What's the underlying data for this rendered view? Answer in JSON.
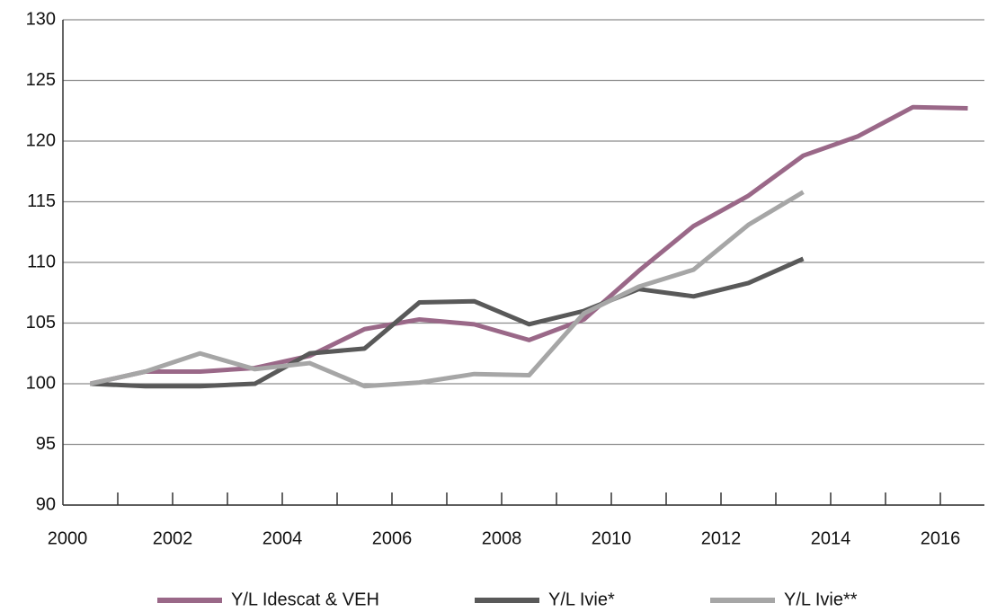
{
  "chart_data": {
    "type": "line",
    "categories": [
      "2000",
      null,
      "2002",
      null,
      "2004",
      null,
      "2006",
      null,
      "2008",
      null,
      "2010",
      null,
      "2012",
      null,
      "2014",
      null,
      "2016"
    ],
    "series": [
      {
        "name": "Y/L Idescat & VEH",
        "color": "#9a6888",
        "values": [
          100,
          101,
          101,
          101.3,
          102.3,
          104.5,
          105.3,
          104.9,
          103.6,
          105.3,
          109.3,
          113,
          115.5,
          118.8,
          120.4,
          122.8,
          122.7
        ]
      },
      {
        "name": "Y/L Ivie*",
        "color": "#595959",
        "values": [
          100,
          99.8,
          99.8,
          100,
          102.5,
          102.9,
          106.7,
          106.8,
          104.9,
          106,
          107.8,
          107.2,
          108.3,
          110.3,
          null,
          null,
          null
        ]
      },
      {
        "name": "Y/L Ivie**",
        "color": "#a6a6a6",
        "values": [
          100,
          101,
          102.5,
          101.2,
          101.7,
          99.8,
          100.1,
          100.8,
          100.7,
          105.8,
          108,
          109.4,
          113.1,
          115.8,
          null,
          null,
          null
        ]
      }
    ],
    "ylim": [
      90,
      130
    ],
    "yticks": [
      90,
      95,
      100,
      105,
      110,
      115,
      120,
      125,
      130
    ],
    "grid": true,
    "legend": "bottom"
  }
}
